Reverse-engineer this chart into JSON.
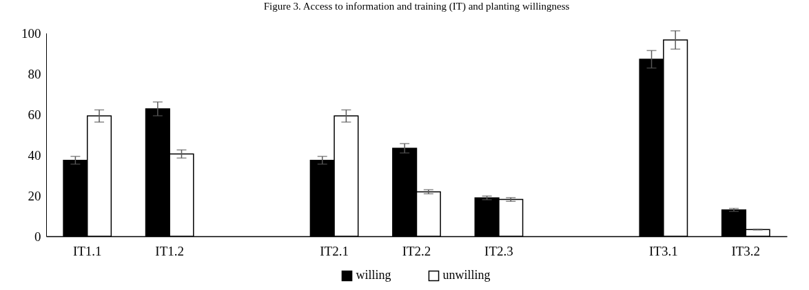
{
  "chart_data": {
    "type": "bar",
    "title": "Figure 3. Access to information and training (IT) and planting willingness",
    "categories": [
      "IT1.1",
      "IT1.2",
      null,
      "IT2.1",
      "IT2.2",
      "IT2.3",
      null,
      "IT3.1",
      "IT3.2"
    ],
    "series": [
      {
        "name": "willing",
        "color": "#000000",
        "values": [
          37.4,
          62.7,
          null,
          37.4,
          43.3,
          18.9,
          null,
          87.1,
          13.0
        ],
        "errors": [
          1.9,
          3.4,
          null,
          1.9,
          2.3,
          0.9,
          null,
          4.3,
          0.7
        ]
      },
      {
        "name": "unwilling",
        "color": "#ffffff",
        "values": [
          59.2,
          40.5,
          null,
          59.2,
          21.9,
          18.1,
          null,
          96.6,
          3.3
        ],
        "errors": [
          3.0,
          2.0,
          null,
          3.0,
          1.0,
          0.9,
          null,
          4.5,
          0.2
        ]
      }
    ],
    "ylim": [
      0,
      100
    ],
    "yticks": [
      0,
      20,
      40,
      60,
      80,
      100
    ],
    "grid": false,
    "legend": "bottom"
  }
}
